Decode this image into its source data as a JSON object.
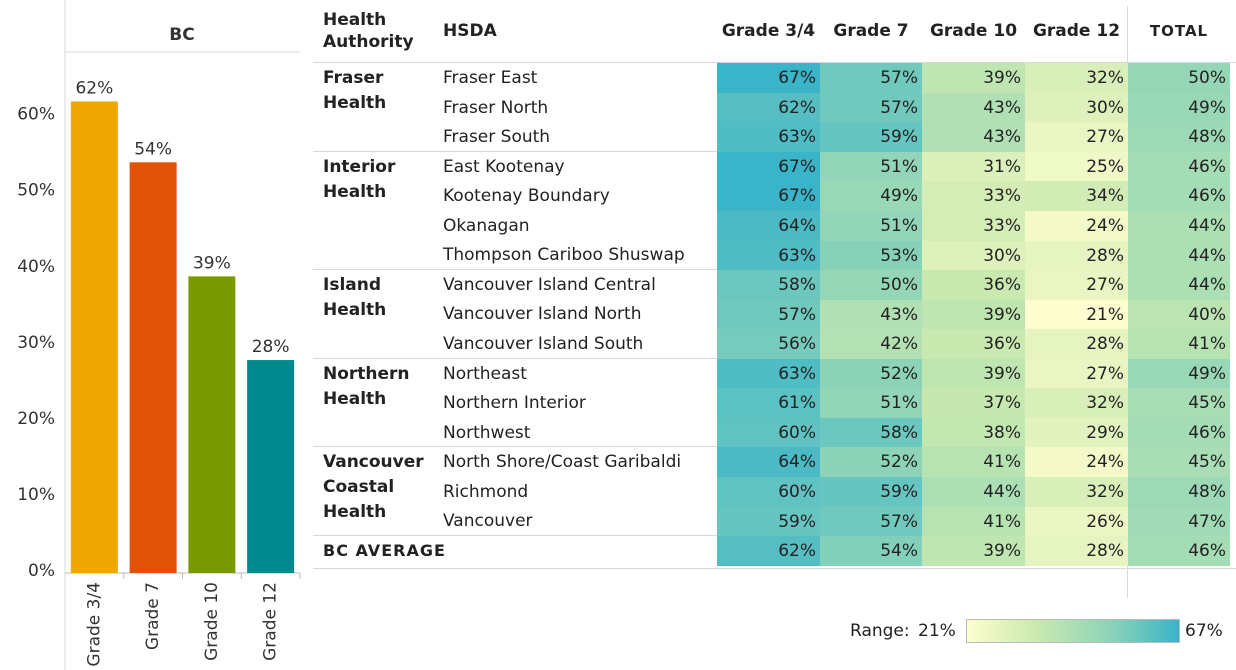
{
  "chart_data": [
    {
      "type": "bar",
      "title": "BC",
      "categories": [
        "Grade 3/4",
        "Grade 7",
        "Grade 10",
        "Grade 12"
      ],
      "values": [
        62,
        54,
        39,
        28
      ],
      "value_labels": [
        "62%",
        "54%",
        "39%",
        "28%"
      ],
      "colors": [
        "#f0a800",
        "#e05206",
        "#789a00",
        "#008a8e"
      ],
      "ylim": [
        0,
        68.5
      ],
      "yticks": [
        {
          "value": 0,
          "label": "0%"
        },
        {
          "value": 10,
          "label": "10%"
        },
        {
          "value": 20,
          "label": "20%"
        },
        {
          "value": 30,
          "label": "30%"
        },
        {
          "value": 40,
          "label": "40%"
        },
        {
          "value": 50,
          "label": "50%"
        },
        {
          "value": 60,
          "label": "60%"
        }
      ],
      "grid": false
    },
    {
      "type": "heatmap",
      "columns": [
        "Health Authority",
        "HSDA",
        "Grade 3/4",
        "Grade 7",
        "Grade 10",
        "Grade 12",
        "TOTAL"
      ],
      "groups": [
        {
          "name": "Fraser Health",
          "rows": [
            {
              "name": "Fraser East",
              "values": [
                67,
                57,
                39,
                32,
                50
              ],
              "value_labels": [
                "67%",
                "57%",
                "39%",
                "32%",
                "50%"
              ]
            },
            {
              "name": "Fraser North",
              "values": [
                62,
                57,
                43,
                30,
                49
              ],
              "value_labels": [
                "62%",
                "57%",
                "43%",
                "30%",
                "49%"
              ]
            },
            {
              "name": "Fraser South",
              "values": [
                63,
                59,
                43,
                27,
                48
              ],
              "value_labels": [
                "63%",
                "59%",
                "43%",
                "27%",
                "48%"
              ]
            }
          ]
        },
        {
          "name": "Interior Health",
          "rows": [
            {
              "name": "East Kootenay",
              "values": [
                67,
                51,
                31,
                25,
                46
              ],
              "value_labels": [
                "67%",
                "51%",
                "31%",
                "25%",
                "46%"
              ]
            },
            {
              "name": "Kootenay Boundary",
              "values": [
                67,
                49,
                33,
                34,
                46
              ],
              "value_labels": [
                "67%",
                "49%",
                "33%",
                "34%",
                "46%"
              ]
            },
            {
              "name": "Okanagan",
              "values": [
                64,
                51,
                33,
                24,
                44
              ],
              "value_labels": [
                "64%",
                "51%",
                "33%",
                "24%",
                "44%"
              ]
            },
            {
              "name": "Thompson Cariboo Shuswap",
              "values": [
                63,
                53,
                30,
                28,
                44
              ],
              "value_labels": [
                "63%",
                "53%",
                "30%",
                "28%",
                "44%"
              ]
            }
          ]
        },
        {
          "name": "Island Health",
          "rows": [
            {
              "name": "Vancouver Island Central",
              "values": [
                58,
                50,
                36,
                27,
                44
              ],
              "value_labels": [
                "58%",
                "50%",
                "36%",
                "27%",
                "44%"
              ]
            },
            {
              "name": "Vancouver Island North",
              "values": [
                57,
                43,
                39,
                21,
                40
              ],
              "value_labels": [
                "57%",
                "43%",
                "39%",
                "21%",
                "40%"
              ]
            },
            {
              "name": "Vancouver Island South",
              "values": [
                56,
                42,
                36,
                28,
                41
              ],
              "value_labels": [
                "56%",
                "42%",
                "36%",
                "28%",
                "41%"
              ]
            }
          ]
        },
        {
          "name": "Northern Health",
          "rows": [
            {
              "name": "Northeast",
              "values": [
                63,
                52,
                39,
                27,
                49
              ],
              "value_labels": [
                "63%",
                "52%",
                "39%",
                "27%",
                "49%"
              ]
            },
            {
              "name": "Northern Interior",
              "values": [
                61,
                51,
                37,
                32,
                45
              ],
              "value_labels": [
                "61%",
                "51%",
                "37%",
                "32%",
                "45%"
              ]
            },
            {
              "name": "Northwest",
              "values": [
                60,
                58,
                38,
                29,
                46
              ],
              "value_labels": [
                "60%",
                "58%",
                "38%",
                "29%",
                "46%"
              ]
            }
          ]
        },
        {
          "name": "Vancouver Coastal Health",
          "rows": [
            {
              "name": "North Shore/Coast Garibaldi",
              "values": [
                64,
                52,
                41,
                24,
                45
              ],
              "value_labels": [
                "64%",
                "52%",
                "41%",
                "24%",
                "45%"
              ]
            },
            {
              "name": "Richmond",
              "values": [
                60,
                59,
                44,
                32,
                48
              ],
              "value_labels": [
                "60%",
                "59%",
                "44%",
                "32%",
                "48%"
              ]
            },
            {
              "name": "Vancouver",
              "values": [
                59,
                57,
                41,
                26,
                47
              ],
              "value_labels": [
                "59%",
                "57%",
                "41%",
                "26%",
                "47%"
              ]
            }
          ]
        }
      ],
      "average": {
        "name": "BC AVERAGE",
        "values": [
          62,
          54,
          39,
          28,
          46
        ],
        "value_labels": [
          "62%",
          "54%",
          "39%",
          "28%",
          "46%"
        ]
      },
      "legend": {
        "label": "Range:",
        "min": {
          "value": 21,
          "label": "21%"
        },
        "max": {
          "value": 67,
          "label": "67%"
        }
      },
      "colors": [
        "#fdfdcf",
        "#c9e9b0",
        "#8fd4b8",
        "#3ab4c8"
      ]
    }
  ]
}
